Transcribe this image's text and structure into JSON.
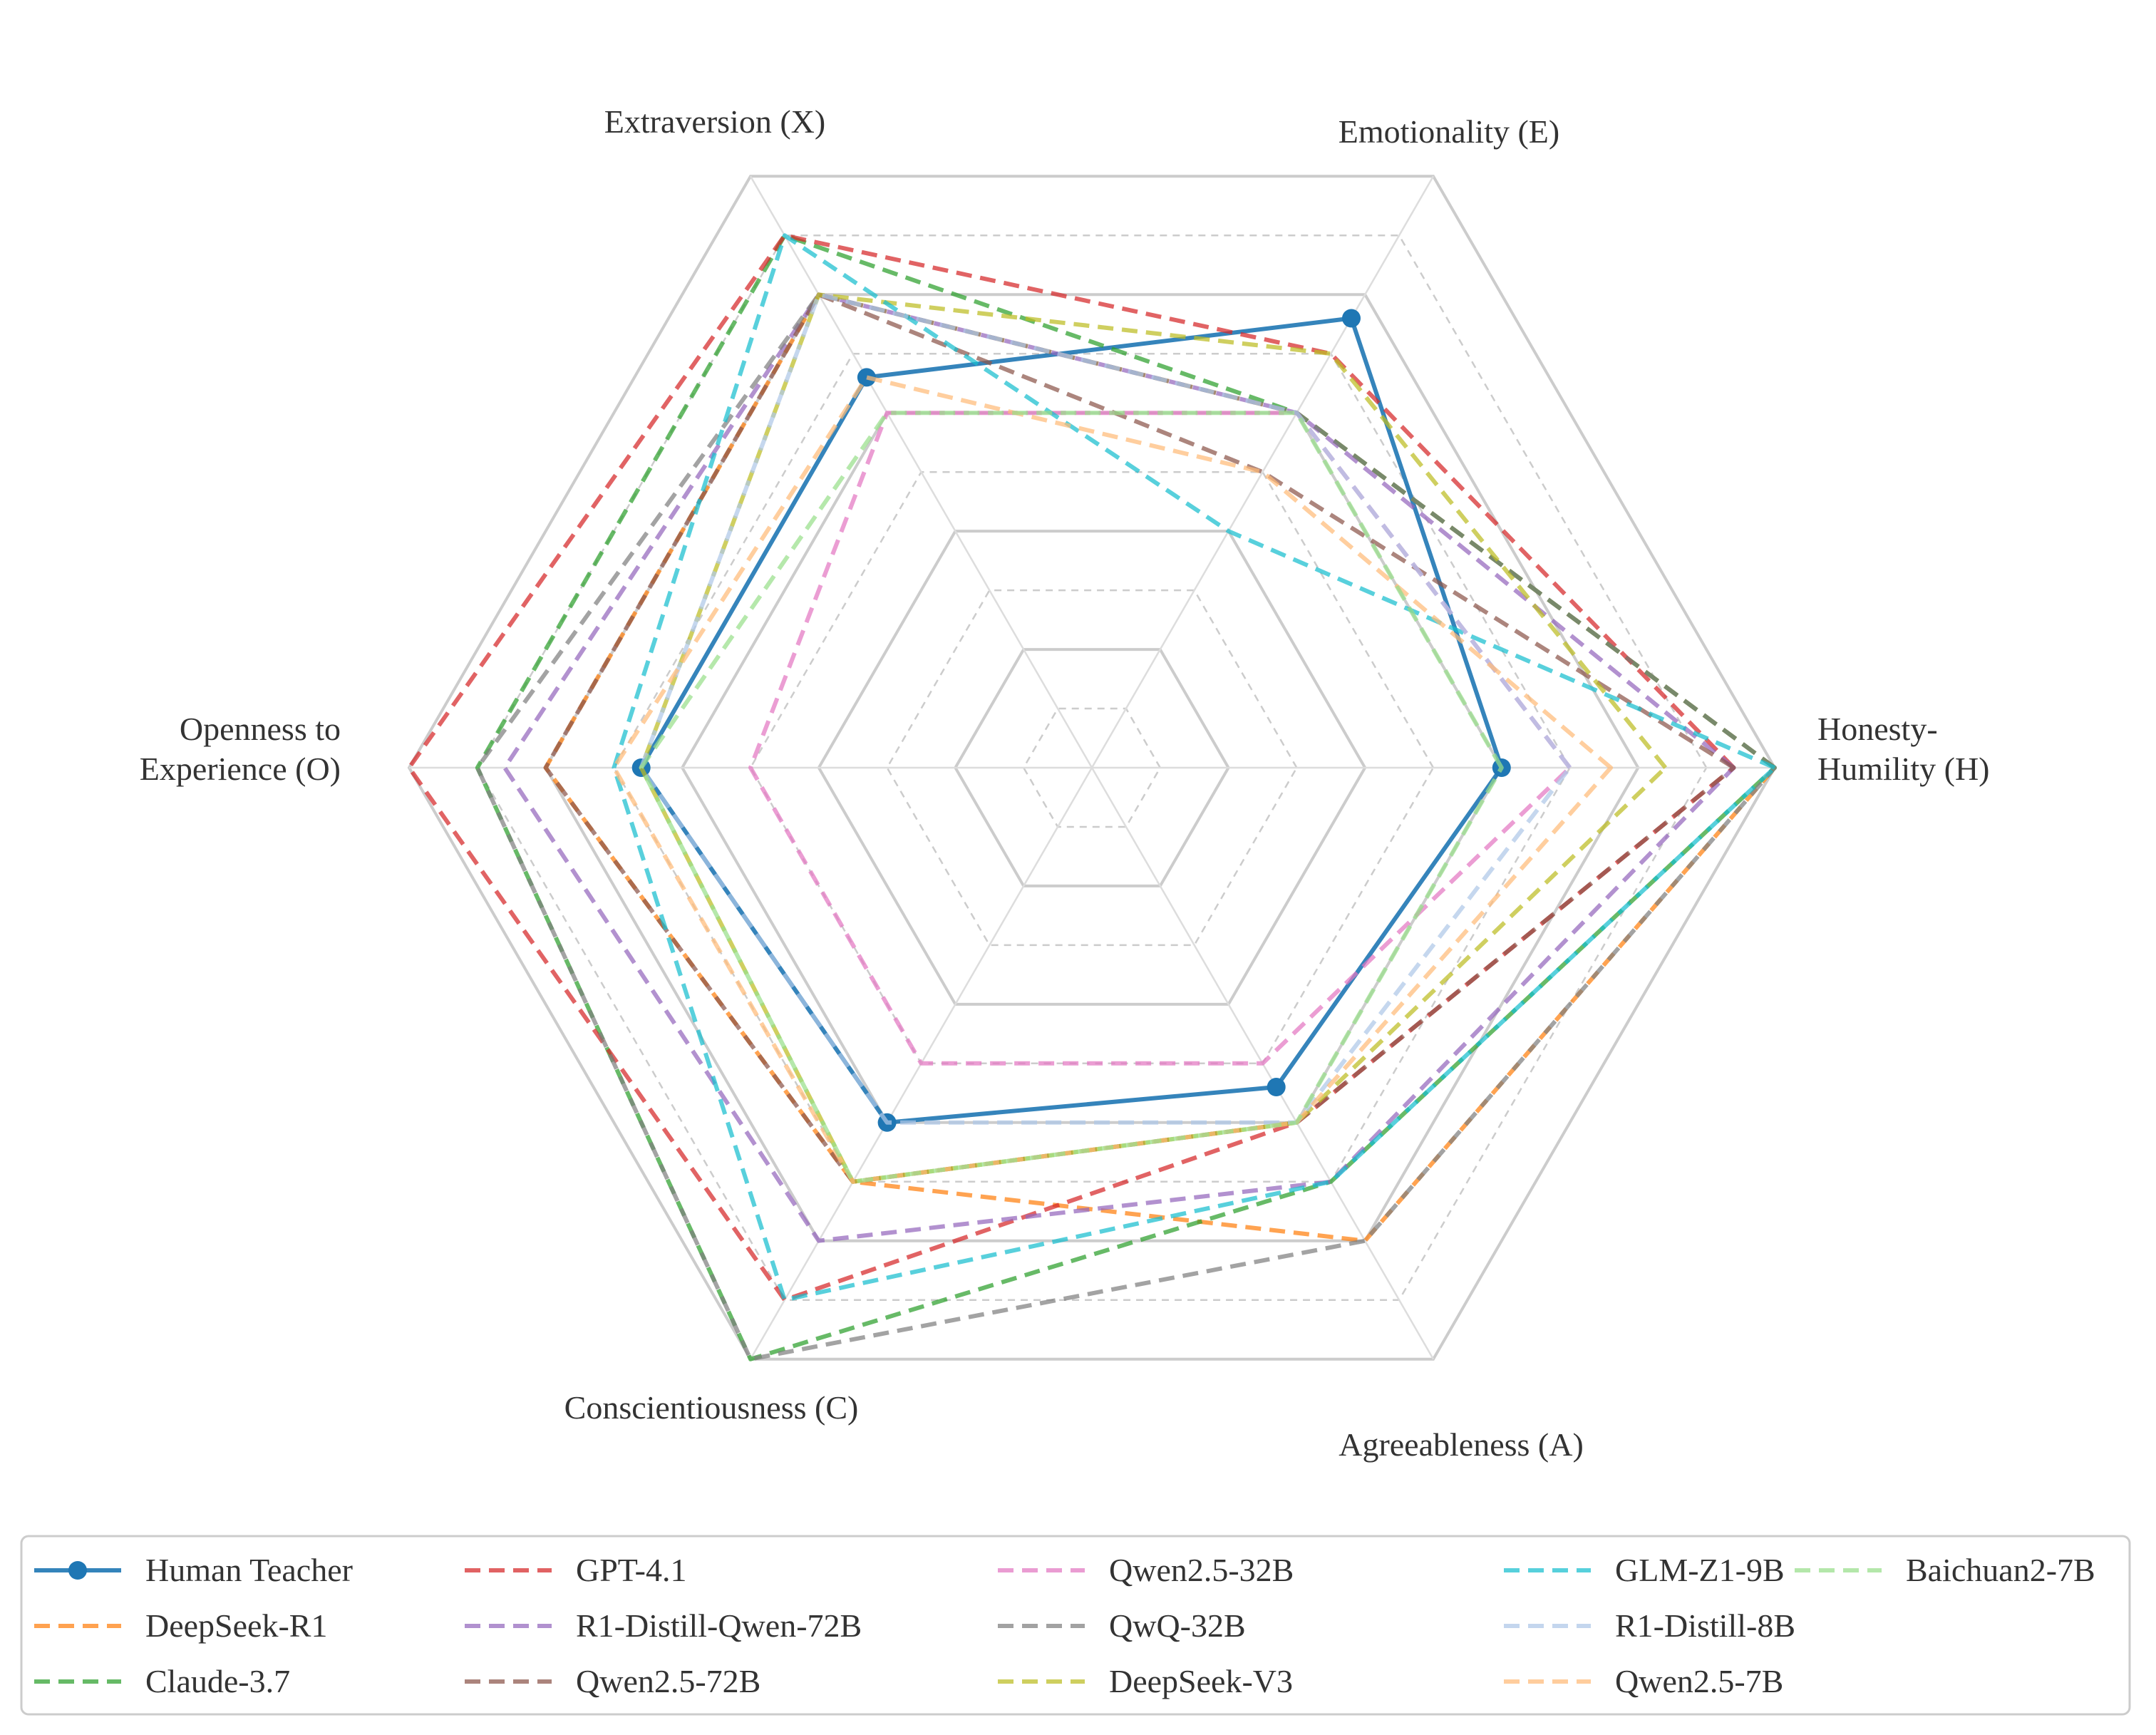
{
  "chart_data": {
    "type": "radar",
    "title": "",
    "axes": [
      [
        "Honesty-",
        "Humility (H)"
      ],
      [
        "Emotionality (E)"
      ],
      [
        "Extraversion (X)"
      ],
      [
        "Openness to",
        "Experience (O)"
      ],
      [
        "Conscientiousness (C)"
      ],
      [
        "Agreeableness (A)"
      ]
    ],
    "rlim": [
      0,
      5
    ],
    "grid_levels": [
      0.5,
      1,
      1.5,
      2,
      2.5,
      3,
      3.5,
      4,
      4.5,
      5
    ],
    "legend_position": "bottom",
    "series": [
      {
        "name": "Human Teacher",
        "values": [
          3.0,
          3.8,
          3.3,
          3.3,
          3.0,
          2.7
        ],
        "color": "#1f77b4",
        "style": "solid",
        "marker": true
      },
      {
        "name": "DeepSeek-R1",
        "values": [
          5.0,
          3.0,
          4.0,
          4.0,
          3.5,
          4.0
        ],
        "color": "#ff7f0e",
        "style": "dashed"
      },
      {
        "name": "Claude-3.7",
        "values": [
          5.0,
          3.0,
          4.5,
          4.5,
          5.0,
          3.5
        ],
        "color": "#2ca02c",
        "style": "dashed"
      },
      {
        "name": "GPT-4.1",
        "values": [
          4.7,
          3.5,
          4.5,
          5.0,
          4.5,
          3.0
        ],
        "color": "#d62728",
        "style": "dashed"
      },
      {
        "name": "R1-Distill-Qwen-72B",
        "values": [
          4.7,
          3.0,
          4.0,
          4.3,
          4.0,
          3.5
        ],
        "color": "#9467bd",
        "style": "dashed"
      },
      {
        "name": "Qwen2.5-72B",
        "values": [
          4.7,
          2.5,
          4.0,
          4.0,
          3.5,
          3.0
        ],
        "color": "#8c564b",
        "style": "dashed"
      },
      {
        "name": "Qwen2.5-32B",
        "values": [
          3.5,
          3.0,
          3.0,
          2.5,
          2.5,
          2.5
        ],
        "color": "#e377c2",
        "style": "dashed"
      },
      {
        "name": "QwQ-32B",
        "values": [
          5.0,
          3.0,
          4.0,
          4.5,
          5.0,
          4.0
        ],
        "color": "#7f7f7f",
        "style": "dashed"
      },
      {
        "name": "DeepSeek-V3",
        "values": [
          4.2,
          3.5,
          4.0,
          3.3,
          3.5,
          3.0
        ],
        "color": "#bcbd22",
        "style": "dashed"
      },
      {
        "name": "GLM-Z1-9B",
        "values": [
          5.0,
          2.0,
          4.5,
          3.5,
          4.5,
          3.5
        ],
        "color": "#17becf",
        "style": "dashed"
      },
      {
        "name": "R1-Distill-8B",
        "values": [
          3.5,
          3.0,
          4.0,
          3.3,
          3.0,
          3.0
        ],
        "color": "#aec7e8",
        "style": "dashed"
      },
      {
        "name": "Qwen2.5-7B",
        "values": [
          3.8,
          2.5,
          3.3,
          3.5,
          3.5,
          3.0
        ],
        "color": "#ffbb78",
        "style": "dashed"
      },
      {
        "name": "Baichuan2-7B",
        "values": [
          3.0,
          3.0,
          3.0,
          3.3,
          3.5,
          3.0
        ],
        "color": "#98df8a",
        "style": "dashed"
      }
    ]
  }
}
